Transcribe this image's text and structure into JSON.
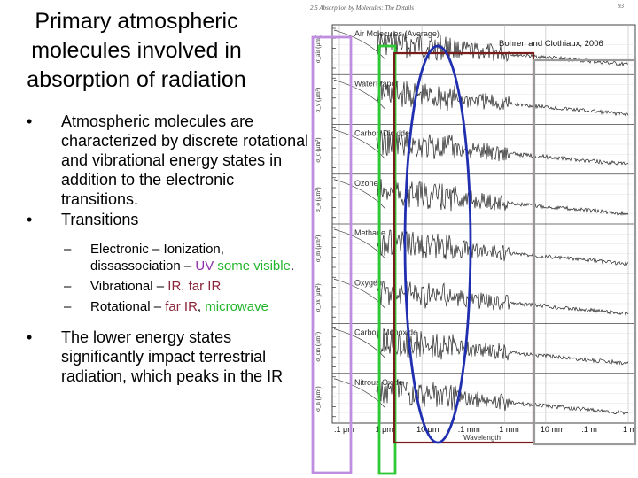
{
  "title": "Primary atmospheric molecules involved in absorption of radiation",
  "bullets": {
    "b1": "Atmospheric molecules are characterized by discrete rotational and vibrational energy states in addition to the electronic transitions.",
    "b2": "Transitions",
    "sub1": {
      "prefix": "Electronic – Ionization, dissassociation – ",
      "uv": "UV",
      "visible": "some visible",
      "suffix": "."
    },
    "sub2": {
      "prefix": "Vibrational – ",
      "ir": "IR, far IR"
    },
    "sub3": {
      "prefix": "Rotational – ",
      "farir": "far IR",
      "sep": ", ",
      "microwave": "microwave"
    },
    "b3": "The lower energy states significantly impact terrestrial radiation, which peaks in the IR"
  },
  "figure": {
    "header": "2.5   Absorption by Molecules: The Details",
    "page_number": "93",
    "citation": "Bohren and Clothiaux, 2006",
    "molecules": [
      "Air Molecules (Average)",
      "Water Vapor",
      "Carbon Dioxide",
      "Ozone",
      "Methane",
      "Oxygen",
      "Carbon Monoxide",
      "Nitrous Oxide"
    ],
    "y_axis_labels": [
      "σ_air (μm²)",
      "σ_v (μm²)",
      "σ_c (μm²)",
      "σ_o (μm²)",
      "σ_m (μm²)",
      "σ_ox (μm²)",
      "σ_cm (μm²)",
      "σ_n (μm²)"
    ],
    "x_ticks": [
      ".1 μm",
      "1 μm",
      "10 μm",
      ".1 mm",
      "1 mm",
      "10 mm",
      ".1 m",
      "1 m"
    ],
    "x_label": "Wavelength",
    "colors": {
      "uv_box": "#c08ee0",
      "visible_box": "#2ec935",
      "ir_ellipse": "#1f2fb0",
      "farir_box": "#7a1c1c",
      "microwave_box": "#9a9a9a"
    }
  }
}
